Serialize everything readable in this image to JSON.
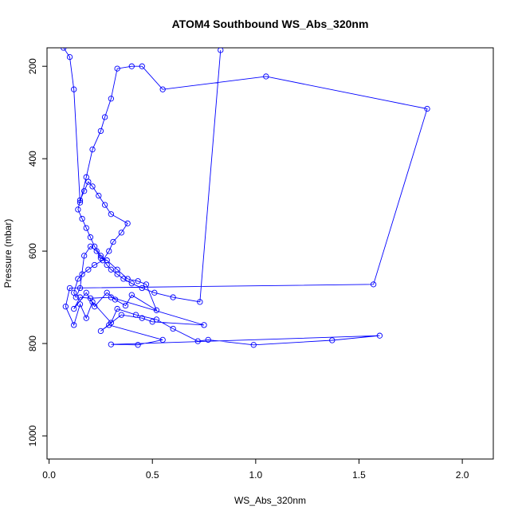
{
  "chart_data": {
    "type": "line",
    "title": "ATOM4 Southbound WS_Abs_320nm",
    "xlabel": "WS_Abs_320nm",
    "ylabel": "Pressure (mbar)",
    "xlim": [
      -0.01,
      2.15
    ],
    "ylim": [
      1050,
      160
    ],
    "y_reversed": true,
    "x_ticks": [
      0.0,
      0.5,
      1.0,
      1.5,
      2.0
    ],
    "x_tick_labels": [
      "0.0",
      "0.5",
      "1.0",
      "1.5",
      "2.0"
    ],
    "y_ticks": [
      200,
      400,
      600,
      800,
      1000
    ],
    "y_tick_labels": [
      "200",
      "400",
      "600",
      "800",
      "1000"
    ],
    "grid": false,
    "legend": "none",
    "series_color": "#0000ff",
    "marker": "open-circle",
    "series": [
      {
        "x": [
          0.07,
          0.1,
          0.12,
          0.15,
          0.18,
          0.21,
          0.25,
          0.27,
          0.3,
          0.33,
          0.4,
          0.45,
          0.55,
          1.05,
          1.83,
          1.57,
          0.1,
          0.08,
          0.12,
          0.15,
          0.18,
          0.21,
          0.3,
          0.33,
          0.42,
          0.52,
          0.6,
          0.72,
          0.77,
          0.99,
          1.37,
          1.6,
          0.3,
          0.43,
          0.55,
          0.29,
          0.25,
          0.35,
          0.45,
          0.5,
          0.75,
          0.3,
          0.2,
          0.15,
          0.12,
          0.18,
          0.22,
          0.28,
          0.32,
          0.37,
          0.4,
          0.52,
          0.47,
          0.43,
          0.38,
          0.33,
          0.28,
          0.25,
          0.23,
          0.2,
          0.17,
          0.15,
          0.13,
          0.12,
          0.14,
          0.16,
          0.19,
          0.22,
          0.26,
          0.29,
          0.31,
          0.35,
          0.38,
          0.3,
          0.27,
          0.24,
          0.21,
          0.19,
          0.17,
          0.15,
          0.14,
          0.16,
          0.18,
          0.2,
          0.22,
          0.25,
          0.28,
          0.3,
          0.33,
          0.36,
          0.4,
          0.45,
          0.51,
          0.6,
          0.73,
          0.83
        ],
        "y": [
          160,
          180,
          250,
          495,
          440,
          380,
          340,
          310,
          270,
          205,
          200,
          200,
          250,
          222,
          292,
          672,
          680,
          720,
          760,
          715,
          745,
          710,
          755,
          725,
          738,
          748,
          768,
          795,
          792,
          803,
          793,
          783,
          802,
          803,
          792,
          760,
          773,
          738,
          745,
          753,
          760,
          700,
          702,
          700,
          725,
          690,
          720,
          690,
          705,
          718,
          695,
          728,
          672,
          665,
          660,
          640,
          620,
          615,
          600,
          590,
          610,
          680,
          700,
          690,
          660,
          650,
          640,
          630,
          620,
          600,
          580,
          560,
          540,
          520,
          500,
          480,
          460,
          450,
          470,
          490,
          510,
          530,
          550,
          570,
          590,
          610,
          630,
          640,
          650,
          660,
          670,
          680,
          690,
          700,
          710,
          165
        ]
      }
    ]
  }
}
